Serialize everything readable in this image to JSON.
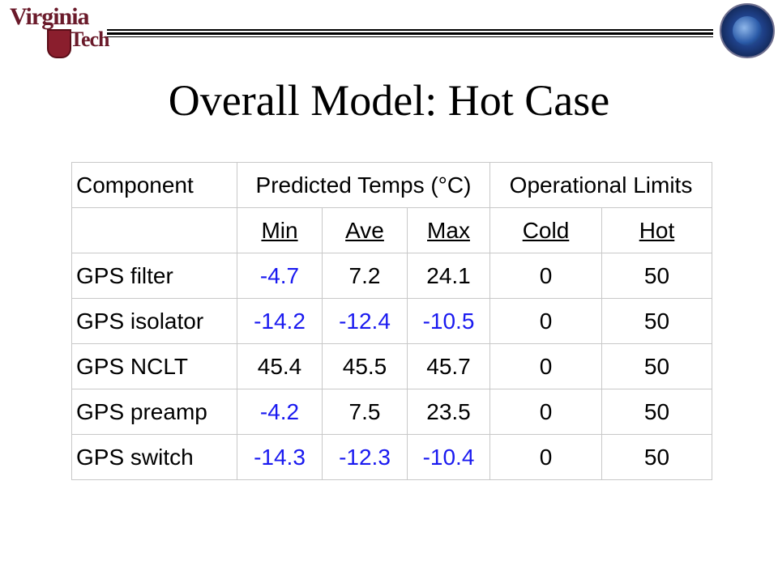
{
  "header": {
    "logo_text_line1": "Virginia",
    "logo_text_line2": "Tech"
  },
  "title": "Overall Model: Hot Case",
  "table": {
    "group_headers": [
      "Component",
      "Predicted Temps (°C)",
      "Operational Limits"
    ],
    "sub_headers": [
      "Min",
      "Ave",
      "Max",
      "Cold",
      "Hot"
    ],
    "rows": [
      {
        "component": "GPS filter",
        "min": "-4.7",
        "ave": "7.2",
        "max": "24.1",
        "cold": "0",
        "hot": "50"
      },
      {
        "component": "GPS isolator",
        "min": "-14.2",
        "ave": "-12.4",
        "max": "-10.5",
        "cold": "0",
        "hot": "50"
      },
      {
        "component": "GPS NCLT",
        "min": "45.4",
        "ave": "45.5",
        "max": "45.7",
        "cold": "0",
        "hot": "50"
      },
      {
        "component": "GPS preamp",
        "min": "-4.2",
        "ave": "7.5",
        "max": "23.5",
        "cold": "0",
        "hot": "50"
      },
      {
        "component": "GPS switch",
        "min": "-14.3",
        "ave": "-12.3",
        "max": "-10.4",
        "cold": "0",
        "hot": "50"
      }
    ],
    "highlight_color": "#1a1af0"
  }
}
